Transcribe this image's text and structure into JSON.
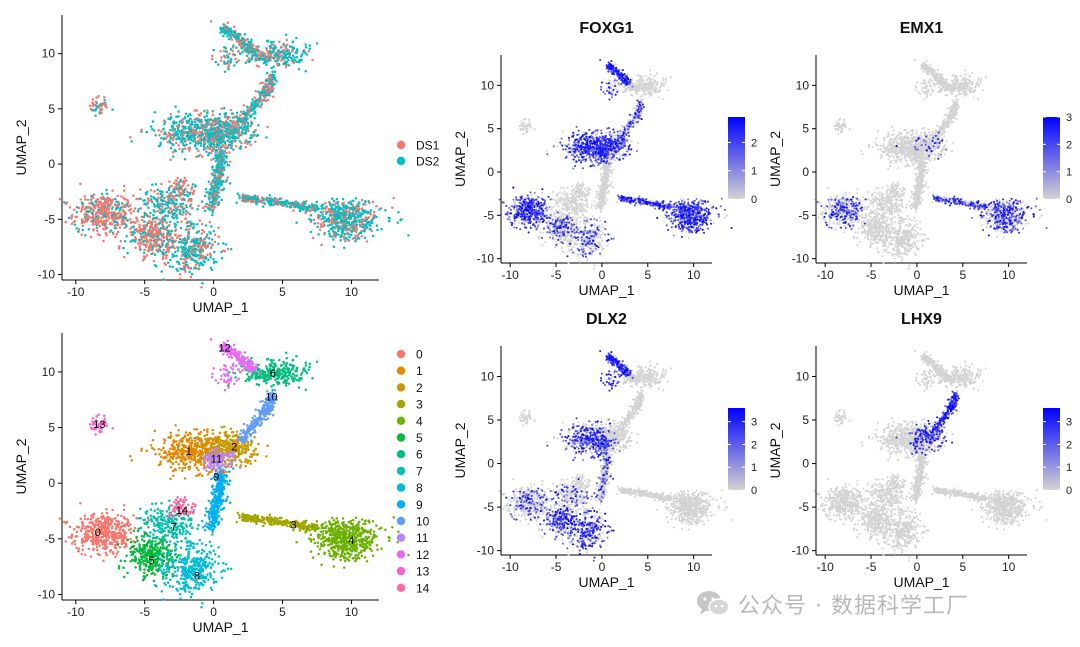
{
  "watermark": {
    "text": "公众号 · 数据科学工厂",
    "icon": "wechat-icon"
  },
  "colors": {
    "ds1": "#F8766D",
    "ds2": "#00BFC4",
    "grey": "#D3D3D3",
    "blue": "#0000FF",
    "clusters": [
      "#F8766D",
      "#E58700",
      "#C99800",
      "#A3A500",
      "#6BB100",
      "#00BA38",
      "#00BF7D",
      "#00C0AF",
      "#00BCD8",
      "#00B0F6",
      "#619CFF",
      "#B983FF",
      "#E76BF3",
      "#FD61D1",
      "#FF67A4"
    ]
  },
  "chart_data": [
    {
      "type": "scatter",
      "title": "",
      "xlabel": "UMAP_1",
      "ylabel": "UMAP_2",
      "xlim": [
        -11,
        12
      ],
      "ylim": [
        -10.5,
        13.5
      ],
      "xticks": [
        -10,
        -5,
        0,
        5,
        10
      ],
      "yticks": [
        -10,
        -5,
        0,
        5,
        10
      ],
      "color_by": "dataset",
      "legend_position": "right",
      "legend": [
        {
          "label": "DS1",
          "color": "#F8766D"
        },
        {
          "label": "DS2",
          "color": "#00BFC4"
        }
      ]
    },
    {
      "type": "scatter",
      "title": "FOXG1",
      "xlabel": "UMAP_1",
      "ylabel": "UMAP_2",
      "xlim": [
        -11,
        12
      ],
      "ylim": [
        -10.5,
        13.5
      ],
      "xticks": [
        -10,
        -5,
        0,
        5,
        10
      ],
      "yticks": [
        -10,
        -5,
        0,
        5,
        10
      ],
      "colorbar": {
        "min": 0,
        "max": 2.9,
        "ticks": [
          0,
          1,
          2
        ]
      },
      "high_expression_regions": [
        "left arm",
        "center blob",
        "top lobe",
        "right arm",
        "right lobe"
      ]
    },
    {
      "type": "scatter",
      "title": "EMX1",
      "xlabel": "UMAP_1",
      "ylabel": "UMAP_2",
      "xlim": [
        -11,
        12
      ],
      "ylim": [
        -10.5,
        13.5
      ],
      "xticks": [
        -10,
        -5,
        0,
        5,
        10
      ],
      "yticks": [
        -10,
        -5,
        0,
        5,
        10
      ],
      "colorbar": {
        "min": 0,
        "max": 3,
        "ticks": [
          0,
          1,
          2,
          3
        ]
      },
      "high_expression_regions": [
        "left arm",
        "right arm",
        "right lobe"
      ]
    },
    {
      "type": "scatter",
      "title": "DLX2",
      "xlabel": "UMAP_1",
      "ylabel": "UMAP_2",
      "xlim": [
        -11,
        12
      ],
      "ylim": [
        -10.5,
        13.5
      ],
      "xticks": [
        -10,
        -5,
        0,
        5,
        10
      ],
      "yticks": [
        -10,
        -5,
        0,
        5,
        10
      ],
      "colorbar": {
        "min": 0,
        "max": 3.6,
        "ticks": [
          0,
          1,
          2,
          3
        ]
      },
      "high_expression_regions": [
        "lower left lobe",
        "center blob",
        "top lobe"
      ]
    },
    {
      "type": "scatter",
      "title": "LHX9",
      "xlabel": "UMAP_1",
      "ylabel": "UMAP_2",
      "xlim": [
        -11,
        12
      ],
      "ylim": [
        -10.5,
        13.5
      ],
      "xticks": [
        -10,
        -5,
        0,
        5,
        10
      ],
      "yticks": [
        -10,
        -5,
        0,
        5,
        10
      ],
      "colorbar": {
        "min": 0,
        "max": 3.6,
        "ticks": [
          0,
          1,
          2,
          3
        ]
      },
      "high_expression_regions": [
        "central stem"
      ]
    },
    {
      "type": "scatter",
      "title": "",
      "xlabel": "UMAP_1",
      "ylabel": "UMAP_2",
      "xlim": [
        -11,
        12
      ],
      "ylim": [
        -10.5,
        13.5
      ],
      "xticks": [
        -10,
        -5,
        0,
        5,
        10
      ],
      "yticks": [
        -10,
        -5,
        0,
        5,
        10
      ],
      "color_by": "cluster",
      "legend_position": "right",
      "legend": [
        {
          "label": "0",
          "color": "#F8766D"
        },
        {
          "label": "1",
          "color": "#E58700"
        },
        {
          "label": "2",
          "color": "#C99800"
        },
        {
          "label": "3",
          "color": "#A3A500"
        },
        {
          "label": "4",
          "color": "#6BB100"
        },
        {
          "label": "5",
          "color": "#00BA38"
        },
        {
          "label": "6",
          "color": "#00BF7D"
        },
        {
          "label": "7",
          "color": "#00C0AF"
        },
        {
          "label": "8",
          "color": "#00BCD8"
        },
        {
          "label": "9",
          "color": "#00B0F6"
        },
        {
          "label": "10",
          "color": "#619CFF"
        },
        {
          "label": "11",
          "color": "#B983FF"
        },
        {
          "label": "12",
          "color": "#E76BF3"
        },
        {
          "label": "13",
          "color": "#FD61D1"
        },
        {
          "label": "14",
          "color": "#FF67A4"
        }
      ],
      "cluster_labels": [
        {
          "label": "0",
          "x": -8.4,
          "y": -4.4
        },
        {
          "label": "1",
          "x": -1.8,
          "y": 2.9
        },
        {
          "label": "2",
          "x": 1.5,
          "y": 3.3
        },
        {
          "label": "3",
          "x": 5.8,
          "y": -3.7
        },
        {
          "label": "4",
          "x": 10.0,
          "y": -5.1
        },
        {
          "label": "5",
          "x": -4.5,
          "y": -6.9
        },
        {
          "label": "6",
          "x": 4.3,
          "y": 9.9
        },
        {
          "label": "7",
          "x": -2.9,
          "y": -3.9
        },
        {
          "label": "8",
          "x": -1.2,
          "y": -8.3
        },
        {
          "label": "9",
          "x": 0.2,
          "y": 0.6
        },
        {
          "label": "10",
          "x": 4.2,
          "y": 7.8
        },
        {
          "label": "11",
          "x": 0.2,
          "y": 2.2
        },
        {
          "label": "12",
          "x": 0.8,
          "y": 12.2
        },
        {
          "label": "13",
          "x": -8.3,
          "y": 5.3
        },
        {
          "label": "14",
          "x": -2.3,
          "y": -2.4
        }
      ]
    }
  ]
}
